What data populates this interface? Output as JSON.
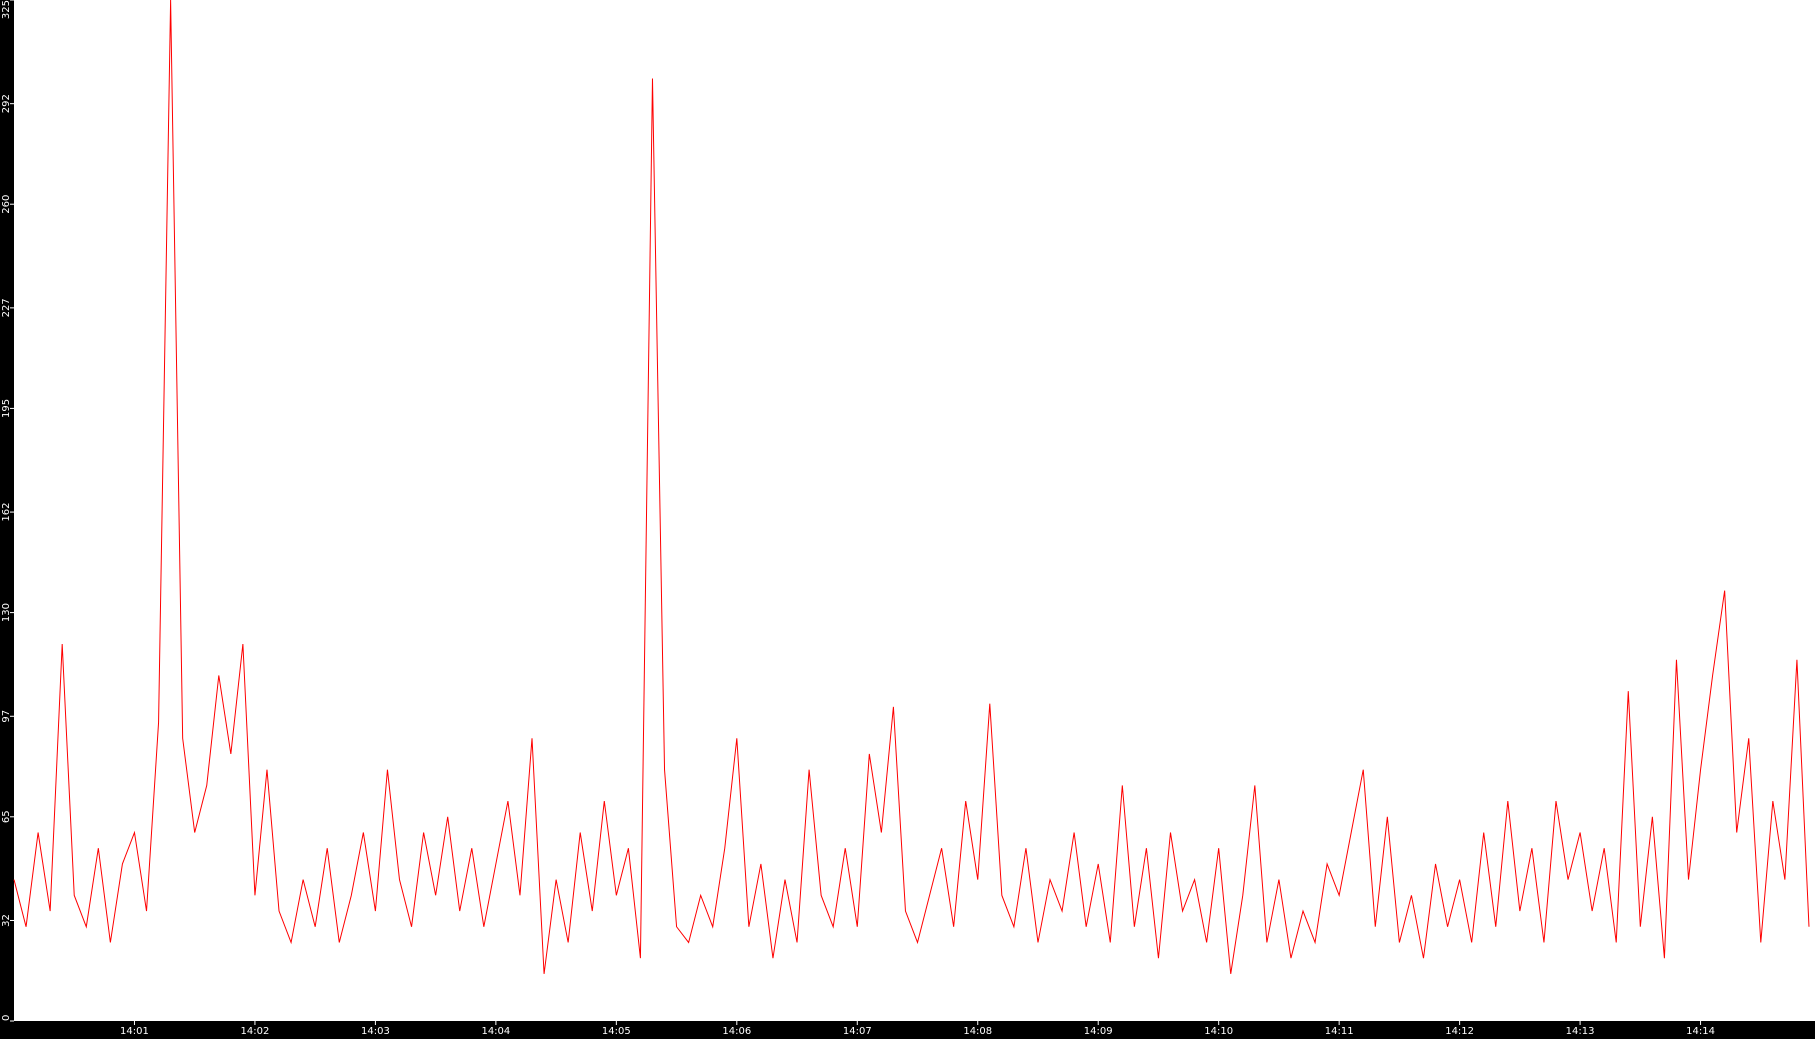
{
  "chart_data": {
    "type": "line",
    "x": [
      0.0,
      0.1,
      0.2,
      0.3,
      0.4,
      0.5,
      0.6,
      0.7,
      0.8,
      0.9,
      1.0,
      1.1,
      1.2,
      1.3,
      1.4,
      1.5,
      1.6,
      1.7,
      1.8,
      1.9,
      2.0,
      2.1,
      2.2,
      2.3,
      2.4,
      2.5,
      2.6,
      2.7,
      2.8,
      2.9,
      3.0,
      3.1,
      3.2,
      3.3,
      3.4,
      3.5,
      3.6,
      3.7,
      3.8,
      3.9,
      4.0,
      4.1,
      4.2,
      4.3,
      4.4,
      4.5,
      4.6,
      4.7,
      4.8,
      4.9,
      5.0,
      5.1,
      5.2,
      5.3,
      5.4,
      5.5,
      5.6,
      5.7,
      5.8,
      5.9,
      6.0,
      6.1,
      6.2,
      6.3,
      6.4,
      6.5,
      6.6,
      6.7,
      6.8,
      6.9,
      7.0,
      7.1,
      7.2,
      7.3,
      7.4,
      7.5,
      7.6,
      7.7,
      7.8,
      7.9,
      8.0,
      8.1,
      8.2,
      8.3,
      8.4,
      8.5,
      8.6,
      8.7,
      8.8,
      8.9,
      9.0,
      9.1,
      9.2,
      9.3,
      9.4,
      9.5,
      9.6,
      9.7,
      9.8,
      9.9,
      10.0,
      10.1,
      10.2,
      10.3,
      10.4,
      10.5,
      10.6,
      10.7,
      10.8,
      10.9,
      11.0,
      11.1,
      11.2,
      11.3,
      11.4,
      11.5,
      11.6,
      11.7,
      11.8,
      11.9,
      12.0,
      12.1,
      12.2,
      12.3,
      12.4,
      12.5,
      12.6,
      12.7,
      12.8,
      12.9,
      13.0,
      13.1,
      13.2,
      13.3,
      13.4,
      13.5,
      13.6,
      13.7,
      13.8,
      13.9,
      14.0,
      14.1,
      14.2,
      14.3,
      14.4,
      14.5,
      14.6,
      14.7,
      14.8,
      14.9
    ],
    "series": [
      {
        "color": "#ff0000",
        "values": [
          45,
          30,
          60,
          35,
          120,
          40,
          30,
          55,
          25,
          50,
          60,
          35,
          95,
          325,
          90,
          60,
          75,
          110,
          85,
          120,
          40,
          80,
          35,
          25,
          45,
          30,
          55,
          25,
          40,
          60,
          35,
          80,
          45,
          30,
          60,
          40,
          65,
          35,
          55,
          30,
          50,
          70,
          40,
          90,
          15,
          45,
          25,
          60,
          35,
          70,
          40,
          55,
          20,
          300,
          80,
          30,
          25,
          40,
          30,
          55,
          90,
          30,
          50,
          20,
          45,
          25,
          80,
          40,
          30,
          55,
          30,
          85,
          60,
          100,
          35,
          25,
          40,
          55,
          30,
          70,
          45,
          101,
          40,
          30,
          55,
          25,
          45,
          35,
          60,
          30,
          50,
          25,
          75,
          30,
          55,
          20,
          60,
          35,
          45,
          25,
          55,
          15,
          40,
          75,
          25,
          45,
          20,
          35,
          25,
          50,
          40,
          60,
          80,
          30,
          65,
          25,
          40,
          20,
          50,
          30,
          45,
          25,
          60,
          30,
          70,
          35,
          55,
          25,
          70,
          45,
          60,
          35,
          55,
          25,
          105,
          30,
          65,
          20,
          115,
          45,
          80,
          110,
          137,
          60,
          90,
          25,
          70,
          45,
          115,
          30
        ]
      }
    ],
    "xlim": [
      0,
      14.95
    ],
    "xticks": [
      {
        "value": 1,
        "label": "14:01"
      },
      {
        "value": 2,
        "label": "14:02"
      },
      {
        "value": 3,
        "label": "14:03"
      },
      {
        "value": 4,
        "label": "14:04"
      },
      {
        "value": 5,
        "label": "14:05"
      },
      {
        "value": 6,
        "label": "14:06"
      },
      {
        "value": 7,
        "label": "14:07"
      },
      {
        "value": 8,
        "label": "14:08"
      },
      {
        "value": 9,
        "label": "14:09"
      },
      {
        "value": 10,
        "label": "14:10"
      },
      {
        "value": 11,
        "label": "14:11"
      },
      {
        "value": 12,
        "label": "14:12"
      },
      {
        "value": 13,
        "label": "14:13"
      },
      {
        "value": 14,
        "label": "14:14"
      }
    ],
    "ylim": [
      0,
      325
    ],
    "yticks": [
      0,
      32,
      65,
      97,
      130,
      162,
      195,
      227,
      260,
      292,
      325
    ]
  }
}
